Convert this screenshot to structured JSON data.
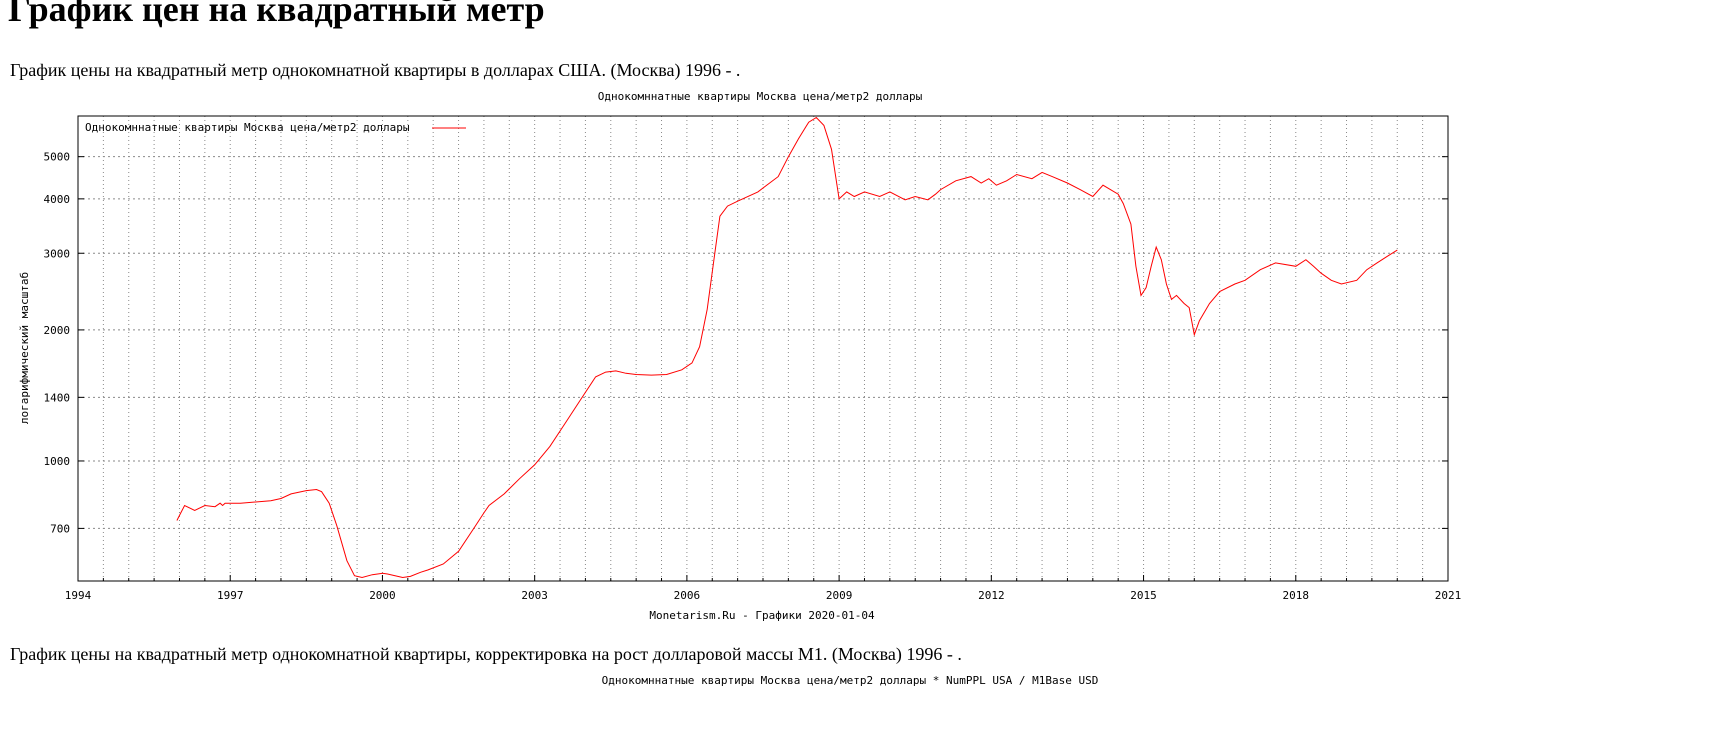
{
  "page": {
    "heading": "График цен на квадратный метр",
    "caption_1": "График цены на квадратный метр однокомнатной квартиры в долларах США. (Москва) 1996 - .",
    "caption_2": "График цены на квадратный метр однокомнатной квартиры, корректировка на рост долларовой массы M1. (Москва) 1996 - .",
    "chart2_title": "Однокомннатные квартиры Москва цена/метр2 доллары * NumPPL USA / M1Base USD"
  },
  "chart_data": {
    "type": "line",
    "title": "Однокомннатные квартиры Москва цена/метр2 доллары",
    "ylabel": "логарифмический масштаб",
    "xlabel": "Monetarism.Ru - Графики  2020-01-04",
    "yscale": "log",
    "xlim": [
      1994,
      2021
    ],
    "ylim": [
      530,
      6200
    ],
    "x_ticks": [
      1994,
      1997,
      2000,
      2003,
      2006,
      2009,
      2012,
      2015,
      2018,
      2021
    ],
    "y_ticks": [
      700,
      1000,
      1400,
      2000,
      3000,
      4000,
      5000
    ],
    "grid": true,
    "legend": "top-left",
    "series_color": "#ff0000",
    "series": [
      {
        "name": "Однокомннатные квартиры Москва цена/метр2 доллары",
        "x": [
          1995.95,
          1996.0,
          1996.1,
          1996.3,
          1996.5,
          1996.7,
          1996.8,
          1996.85,
          1996.9,
          1997.2,
          1997.5,
          1997.8,
          1998.0,
          1998.2,
          1998.5,
          1998.7,
          1998.8,
          1998.95,
          1999.1,
          1999.3,
          1999.45,
          1999.6,
          1999.8,
          2000.0,
          2000.1,
          2000.25,
          2000.4,
          2000.55,
          2000.75,
          2000.9,
          2001.2,
          2001.5,
          2001.8,
          2002.0,
          2002.1,
          2002.4,
          2002.7,
          2003.0,
          2003.3,
          2003.6,
          2003.9,
          2004.2,
          2004.4,
          2004.6,
          2004.8,
          2005.0,
          2005.3,
          2005.6,
          2005.9,
          2006.1,
          2006.25,
          2006.4,
          2006.55,
          2006.65,
          2006.8,
          2007.0,
          2007.4,
          2007.8,
          2008.0,
          2008.2,
          2008.4,
          2008.55,
          2008.7,
          2008.85,
          2009.0,
          2009.15,
          2009.3,
          2009.5,
          2009.8,
          2010.0,
          2010.3,
          2010.5,
          2010.75,
          2010.9,
          2011.0,
          2011.3,
          2011.6,
          2011.8,
          2011.95,
          2012.1,
          2012.3,
          2012.5,
          2012.8,
          2013.0,
          2013.2,
          2013.5,
          2013.75,
          2014.0,
          2014.2,
          2014.5,
          2014.6,
          2014.75,
          2014.85,
          2014.95,
          2015.05,
          2015.15,
          2015.25,
          2015.35,
          2015.45,
          2015.55,
          2015.65,
          2015.8,
          2015.9,
          2016.0,
          2016.1,
          2016.3,
          2016.5,
          2016.8,
          2017.0,
          2017.3,
          2017.6,
          2018.0,
          2018.2,
          2018.35,
          2018.5,
          2018.7,
          2018.9,
          2019.2,
          2019.4,
          2019.6,
          2019.8,
          2020.0
        ],
        "y": [
          730,
          750,
          790,
          770,
          790,
          785,
          800,
          790,
          800,
          800,
          805,
          810,
          820,
          840,
          855,
          860,
          850,
          800,
          710,
          590,
          545,
          540,
          548,
          552,
          550,
          545,
          540,
          543,
          555,
          562,
          580,
          620,
          700,
          760,
          790,
          840,
          910,
          980,
          1080,
          1220,
          1380,
          1560,
          1600,
          1610,
          1590,
          1580,
          1575,
          1580,
          1620,
          1680,
          1830,
          2230,
          3000,
          3650,
          3850,
          3950,
          4150,
          4500,
          5000,
          5500,
          6000,
          6150,
          5900,
          5200,
          4000,
          4150,
          4050,
          4150,
          4050,
          4150,
          3980,
          4050,
          3980,
          4100,
          4200,
          4400,
          4500,
          4350,
          4450,
          4300,
          4400,
          4550,
          4450,
          4600,
          4500,
          4350,
          4200,
          4050,
          4300,
          4100,
          3900,
          3500,
          2800,
          2400,
          2500,
          2800,
          3100,
          2900,
          2550,
          2350,
          2400,
          2300,
          2250,
          1950,
          2100,
          2300,
          2450,
          2550,
          2600,
          2750,
          2850,
          2800,
          2900,
          2800,
          2700,
          2600,
          2550,
          2600,
          2750,
          2850,
          2950,
          3050
        ]
      }
    ]
  }
}
